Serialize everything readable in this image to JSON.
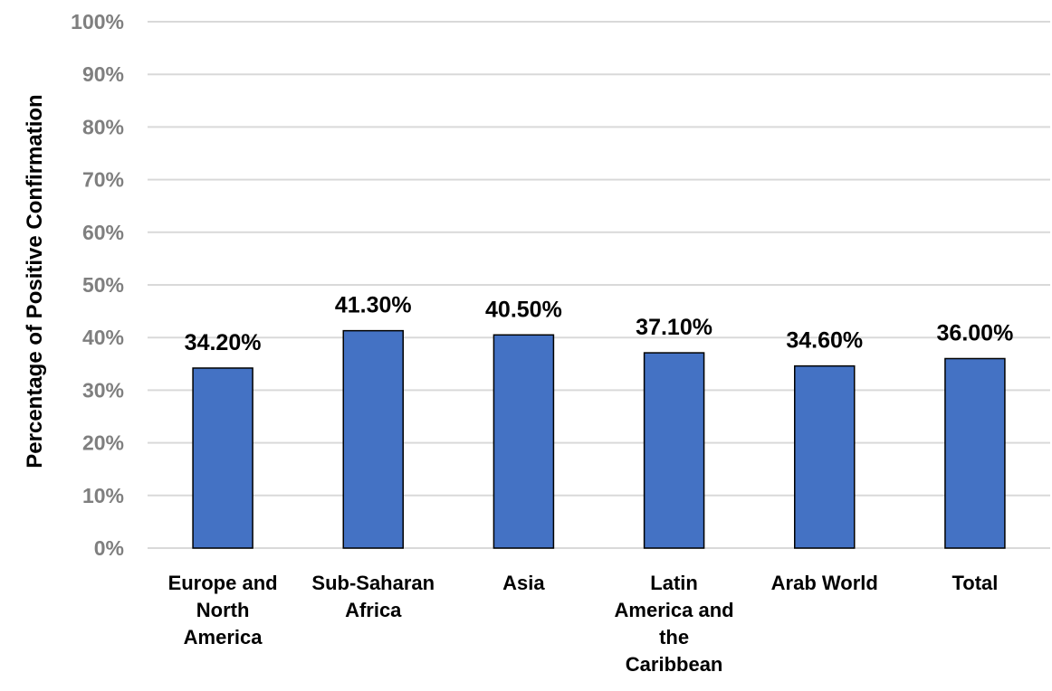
{
  "chart_data": {
    "type": "bar",
    "categories": [
      [
        "Europe and",
        "North",
        "America"
      ],
      [
        "Sub-Saharan",
        "Africa"
      ],
      [
        "Asia"
      ],
      [
        "Latin",
        "America and",
        "the",
        "Caribbean"
      ],
      [
        "Arab World"
      ],
      [
        "Total"
      ]
    ],
    "values": [
      34.2,
      41.3,
      40.5,
      37.1,
      34.6,
      36.0
    ],
    "data_labels": [
      "34.20%",
      "41.30%",
      "40.50%",
      "37.10%",
      "34.60%",
      "36.00%"
    ],
    "ylabel": "Percentage of Positive Confirmation",
    "xlabel": "",
    "ylim": [
      0,
      100
    ],
    "yticks": [
      "0%",
      "10%",
      "20%",
      "30%",
      "40%",
      "50%",
      "60%",
      "70%",
      "80%",
      "90%",
      "100%"
    ],
    "grid": true,
    "legend": "none",
    "bar_color": "#4472c4",
    "bar_edge_color": "#000000",
    "grid_color": "#d9d9d9"
  }
}
